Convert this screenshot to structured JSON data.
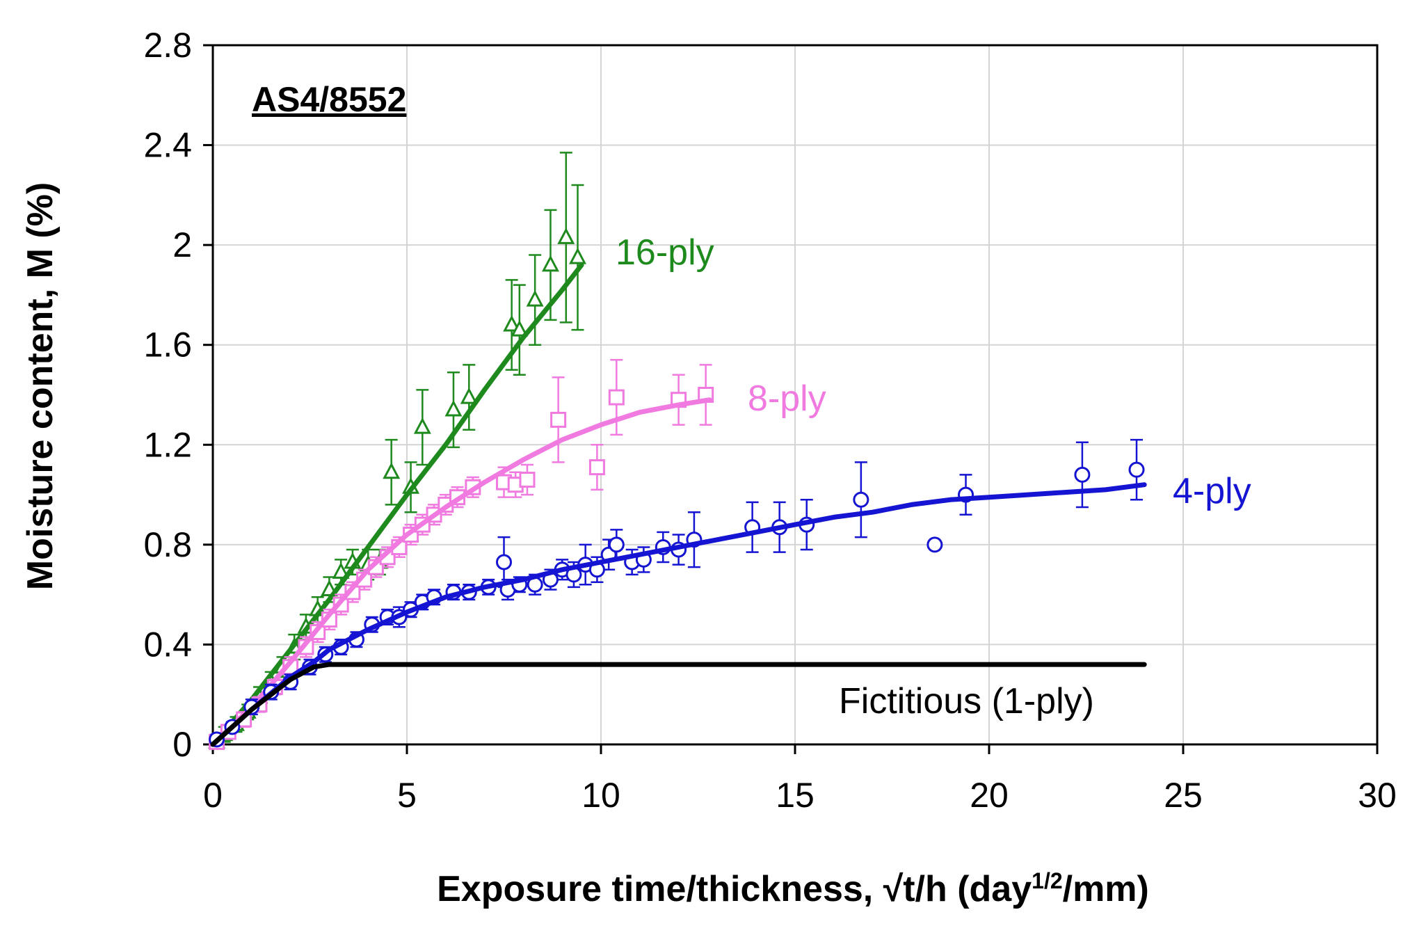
{
  "chart_data": {
    "type": "scatter",
    "title": "",
    "panel_label": "AS4/8552",
    "xlabel_parts": [
      "Exposure time/thickness, √t/h (day",
      "1/2",
      "/mm)"
    ],
    "ylabel": "Moisture content,  M (%)",
    "xlim": [
      0,
      30
    ],
    "ylim": [
      0,
      2.8
    ],
    "xticks": [
      "0",
      "5",
      "10",
      "15",
      "20",
      "25",
      "30"
    ],
    "yticks": [
      "0",
      "0.4",
      "0.8",
      "1.2",
      "1.6",
      "2",
      "2.4",
      "2.8"
    ],
    "grid": true,
    "legend": "none (series labeled directly on plot)",
    "series": [
      {
        "name": "16-ply",
        "color": "#1e8a1e",
        "marker": "triangle",
        "points": [
          [
            0.1,
            0.01,
            0.02
          ],
          [
            0.3,
            0.04,
            0.03
          ],
          [
            0.6,
            0.08,
            0.03
          ],
          [
            0.9,
            0.13,
            0.03
          ],
          [
            1.2,
            0.19,
            0.04
          ],
          [
            1.5,
            0.25,
            0.04
          ],
          [
            1.8,
            0.31,
            0.04
          ],
          [
            2.1,
            0.39,
            0.05
          ],
          [
            2.4,
            0.47,
            0.05
          ],
          [
            2.7,
            0.54,
            0.05
          ],
          [
            3.0,
            0.62,
            0.05
          ],
          [
            3.3,
            0.69,
            0.05
          ],
          [
            3.6,
            0.73,
            0.05
          ],
          [
            4.0,
            0.72,
            0.06
          ],
          [
            4.3,
            0.73,
            0.05
          ],
          [
            4.6,
            1.09,
            0.13
          ],
          [
            5.1,
            1.03,
            0.1
          ],
          [
            5.4,
            1.27,
            0.15
          ],
          [
            6.2,
            1.34,
            0.15
          ],
          [
            6.6,
            1.39,
            0.13
          ],
          [
            7.7,
            1.68,
            0.18
          ],
          [
            7.9,
            1.66,
            0.18
          ],
          [
            8.3,
            1.78,
            0.18
          ],
          [
            8.7,
            1.92,
            0.22
          ],
          [
            9.1,
            2.03,
            0.34
          ],
          [
            9.4,
            1.95,
            0.29
          ]
        ],
        "fit": [
          [
            0,
            0
          ],
          [
            1,
            0.18
          ],
          [
            2,
            0.38
          ],
          [
            3,
            0.58
          ],
          [
            4,
            0.79
          ],
          [
            5,
            1.0
          ],
          [
            6,
            1.2
          ],
          [
            7,
            1.42
          ],
          [
            8,
            1.63
          ],
          [
            9,
            1.82
          ],
          [
            9.5,
            1.92
          ]
        ]
      },
      {
        "name": "8-ply",
        "color": "#f07ae0",
        "marker": "square",
        "points": [
          [
            0.1,
            0.01,
            0.02
          ],
          [
            0.4,
            0.05,
            0.02
          ],
          [
            0.8,
            0.1,
            0.03
          ],
          [
            1.2,
            0.16,
            0.03
          ],
          [
            1.6,
            0.23,
            0.03
          ],
          [
            2.0,
            0.31,
            0.04
          ],
          [
            2.4,
            0.39,
            0.04
          ],
          [
            2.7,
            0.45,
            0.04
          ],
          [
            3.0,
            0.5,
            0.04
          ],
          [
            3.3,
            0.56,
            0.04
          ],
          [
            3.6,
            0.61,
            0.04
          ],
          [
            3.9,
            0.66,
            0.04
          ],
          [
            4.2,
            0.71,
            0.04
          ],
          [
            4.5,
            0.75,
            0.04
          ],
          [
            4.8,
            0.79,
            0.04
          ],
          [
            5.1,
            0.84,
            0.04
          ],
          [
            5.4,
            0.88,
            0.04
          ],
          [
            5.7,
            0.92,
            0.04
          ],
          [
            6.0,
            0.96,
            0.04
          ],
          [
            6.3,
            0.99,
            0.04
          ],
          [
            6.7,
            1.03,
            0.04
          ],
          [
            7.5,
            1.05,
            0.06
          ],
          [
            7.8,
            1.04,
            0.05
          ],
          [
            8.1,
            1.06,
            0.06
          ],
          [
            8.9,
            1.3,
            0.17
          ],
          [
            9.9,
            1.11,
            0.09
          ],
          [
            10.4,
            1.39,
            0.15
          ],
          [
            12.0,
            1.38,
            0.1
          ],
          [
            12.7,
            1.4,
            0.12
          ]
        ],
        "fit": [
          [
            0,
            0
          ],
          [
            1,
            0.15
          ],
          [
            2,
            0.33
          ],
          [
            3,
            0.52
          ],
          [
            4,
            0.7
          ],
          [
            5,
            0.84
          ],
          [
            6,
            0.95
          ],
          [
            7,
            1.05
          ],
          [
            8,
            1.14
          ],
          [
            9,
            1.22
          ],
          [
            10,
            1.28
          ],
          [
            11,
            1.33
          ],
          [
            12,
            1.36
          ],
          [
            12.8,
            1.38
          ]
        ]
      },
      {
        "name": "4-ply",
        "color": "#1414d2",
        "marker": "circle",
        "points": [
          [
            0.1,
            0.02,
            0.02
          ],
          [
            0.5,
            0.07,
            0.02
          ],
          [
            1.0,
            0.15,
            0.03
          ],
          [
            1.5,
            0.21,
            0.03
          ],
          [
            2.0,
            0.25,
            0.03
          ],
          [
            2.5,
            0.31,
            0.03
          ],
          [
            2.9,
            0.36,
            0.03
          ],
          [
            3.3,
            0.39,
            0.03
          ],
          [
            3.7,
            0.42,
            0.03
          ],
          [
            4.1,
            0.48,
            0.03
          ],
          [
            4.5,
            0.51,
            0.03
          ],
          [
            4.8,
            0.51,
            0.04
          ],
          [
            5.1,
            0.54,
            0.03
          ],
          [
            5.4,
            0.57,
            0.03
          ],
          [
            5.7,
            0.59,
            0.03
          ],
          [
            6.2,
            0.61,
            0.03
          ],
          [
            6.6,
            0.61,
            0.03
          ],
          [
            7.1,
            0.63,
            0.03
          ],
          [
            7.5,
            0.73,
            0.1
          ],
          [
            7.6,
            0.62,
            0.04
          ],
          [
            7.9,
            0.64,
            0.03
          ],
          [
            8.3,
            0.64,
            0.04
          ],
          [
            8.7,
            0.66,
            0.04
          ],
          [
            9.0,
            0.7,
            0.04
          ],
          [
            9.3,
            0.68,
            0.05
          ],
          [
            9.6,
            0.72,
            0.08
          ],
          [
            9.9,
            0.7,
            0.05
          ],
          [
            10.2,
            0.76,
            0.06
          ],
          [
            10.4,
            0.8,
            0.06
          ],
          [
            10.8,
            0.73,
            0.05
          ],
          [
            11.1,
            0.74,
            0.05
          ],
          [
            11.6,
            0.79,
            0.06
          ],
          [
            12.0,
            0.78,
            0.06
          ],
          [
            12.4,
            0.82,
            0.11
          ],
          [
            13.9,
            0.87,
            0.1
          ],
          [
            14.6,
            0.87,
            0.1
          ],
          [
            15.3,
            0.88,
            0.1
          ],
          [
            16.7,
            0.98,
            0.15
          ],
          [
            18.6,
            0.8,
            0.0
          ],
          [
            19.4,
            1.0,
            0.08
          ],
          [
            22.4,
            1.08,
            0.13
          ],
          [
            23.8,
            1.1,
            0.12
          ]
        ],
        "fit": [
          [
            0,
            0
          ],
          [
            1,
            0.14
          ],
          [
            2,
            0.27
          ],
          [
            2.6,
            0.33
          ],
          [
            3,
            0.38
          ],
          [
            4,
            0.46
          ],
          [
            5,
            0.53
          ],
          [
            6,
            0.59
          ],
          [
            7,
            0.63
          ],
          [
            8,
            0.66
          ],
          [
            9,
            0.7
          ],
          [
            10,
            0.73
          ],
          [
            11,
            0.76
          ],
          [
            12,
            0.79
          ],
          [
            13,
            0.82
          ],
          [
            14,
            0.85
          ],
          [
            15,
            0.88
          ],
          [
            16,
            0.91
          ],
          [
            17,
            0.93
          ],
          [
            18,
            0.96
          ],
          [
            19,
            0.98
          ],
          [
            20,
            0.99
          ],
          [
            21,
            1.0
          ],
          [
            22,
            1.01
          ],
          [
            23,
            1.02
          ],
          [
            24,
            1.04
          ]
        ]
      },
      {
        "name": "Fictitious  (1-ply)",
        "color": "#000000",
        "marker": "none",
        "points": [],
        "fit": [
          [
            0,
            0
          ],
          [
            1,
            0.14
          ],
          [
            2,
            0.26
          ],
          [
            2.6,
            0.31
          ],
          [
            3,
            0.32
          ],
          [
            5,
            0.32
          ],
          [
            10,
            0.32
          ],
          [
            15,
            0.32
          ],
          [
            20,
            0.32
          ],
          [
            24,
            0.32
          ]
        ]
      }
    ]
  }
}
